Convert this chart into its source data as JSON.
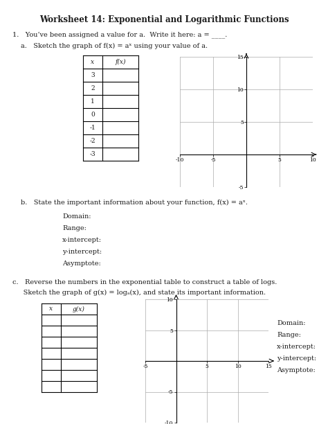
{
  "title": "Worksheet 14: Exponential and Logarithmic Functions",
  "item1_text": "1.   You’ve been assigned a value for a.  Write it here: a = ____.",
  "part_a_text": "a.   Sketch the graph of f(x) = aˣ using your value of a.",
  "part_b_text": "b.   State the important information about your function, f(x) = aˣ.",
  "part_c_line1": "c.   Reverse the numbers in the exponential table to construct a table of logs.",
  "part_c_line2": "     Sketch the graph of g(x) = logₐ(x), and state its important information.",
  "table1_headers": [
    "x",
    "f(x)"
  ],
  "table1_x": [
    "3",
    "2",
    "1",
    "0",
    "-1",
    "-2",
    "-3"
  ],
  "table2_headers": [
    "x",
    "g(x)"
  ],
  "table2_rows": 7,
  "graph1_xlim": [
    -10,
    10
  ],
  "graph1_ylim": [
    -5,
    15
  ],
  "graph1_xticks": [
    -10,
    -5,
    0,
    5,
    10
  ],
  "graph1_yticks": [
    -5,
    0,
    5,
    10,
    15
  ],
  "graph2_xlim": [
    -5,
    15
  ],
  "graph2_ylim": [
    -10,
    10
  ],
  "graph2_xticks": [
    -5,
    0,
    5,
    10,
    15
  ],
  "graph2_yticks": [
    -10,
    -5,
    0,
    5,
    10
  ],
  "domain_range_labels": [
    "Domain:",
    "Range:",
    "x-intercept:",
    "y-intercept:",
    "Asymptote:"
  ],
  "bg_color": "#ffffff",
  "grid_color": "#aaaaaa",
  "text_color": "#1a1a1a",
  "title_fontsize": 8.5,
  "body_fontsize": 7.0,
  "table_fontsize": 6.5,
  "tick_fontsize": 5.5
}
